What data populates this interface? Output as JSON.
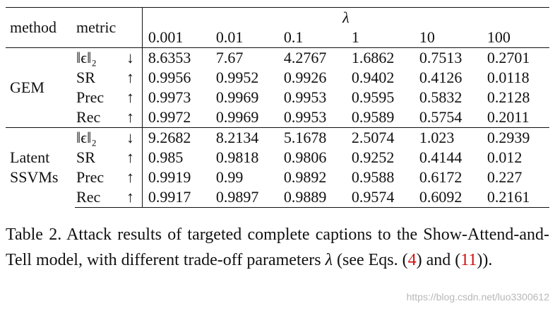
{
  "header": {
    "method": "method",
    "metric": "metric",
    "lambda_symbol": "λ",
    "lambdas": [
      "0.001",
      "0.01",
      "0.1",
      "1",
      "10",
      "100"
    ]
  },
  "groups": [
    {
      "label_lines": [
        "GEM"
      ],
      "rows": [
        {
          "metric": "‖ϵ‖₂",
          "arrow": "↓",
          "values": [
            "8.6353",
            "7.67",
            "4.2767",
            "1.6862",
            "0.7513",
            "0.2701"
          ]
        },
        {
          "metric": "SR",
          "arrow": "↑",
          "values": [
            "0.9956",
            "0.9952",
            "0.9926",
            "0.9402",
            "0.4126",
            "0.0118"
          ]
        },
        {
          "metric": "Prec",
          "arrow": "↑",
          "values": [
            "0.9973",
            "0.9969",
            "0.9953",
            "0.9595",
            "0.5832",
            "0.2128"
          ]
        },
        {
          "metric": "Rec",
          "arrow": "↑",
          "values": [
            "0.9972",
            "0.9969",
            "0.9953",
            "0.9589",
            "0.5754",
            "0.2011"
          ]
        }
      ]
    },
    {
      "label_lines": [
        "Latent",
        "SSVMs"
      ],
      "rows": [
        {
          "metric": "‖ϵ‖₂",
          "arrow": "↓",
          "values": [
            "9.2682",
            "8.2134",
            "5.1678",
            "2.5074",
            "1.023",
            "0.2939"
          ]
        },
        {
          "metric": "SR",
          "arrow": "↑",
          "values": [
            "0.985",
            "0.9818",
            "0.9806",
            "0.9252",
            "0.4144",
            "0.012"
          ]
        },
        {
          "metric": "Prec",
          "arrow": "↑",
          "values": [
            "0.9919",
            "0.99",
            "0.9892",
            "0.9588",
            "0.6172",
            "0.227"
          ]
        },
        {
          "metric": "Rec",
          "arrow": "↑",
          "values": [
            "0.9917",
            "0.9897",
            "0.9889",
            "0.9574",
            "0.6092",
            "0.2161"
          ]
        }
      ]
    }
  ],
  "caption": {
    "part1": "Table 2.  Attack results of targeted complete captions to the Show-Attend-and-Tell model, with different trade-off parameters ",
    "lambda": "λ",
    "part2": " (see Eqs. (",
    "ref1": "4",
    "part3": ") and (",
    "ref2": "11",
    "part4": "))."
  },
  "watermark": "https://blog.csdn.net/luo3300612"
}
